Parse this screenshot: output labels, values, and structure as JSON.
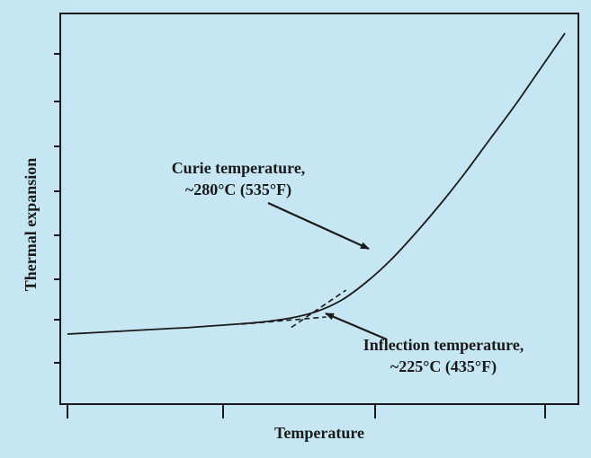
{
  "chart_data": {
    "type": "line",
    "title": "",
    "xlabel": "Temperature",
    "ylabel": "Thermal expansion",
    "x_tick_count": 4,
    "y_tick_count": 8,
    "tick_labels_shown": false,
    "grid": false,
    "series": [
      {
        "style": "solid",
        "x": [
          0,
          25,
          50,
          75,
          100,
          125,
          150,
          175,
          200,
          225,
          250,
          275,
          300,
          325,
          350,
          375,
          400,
          425,
          450,
          475,
          500
        ],
        "y": [
          2.0,
          2.3,
          2.6,
          2.9,
          3.2,
          3.5,
          3.9,
          4.3,
          4.8,
          5.6,
          7.0,
          9.5,
          13.5,
          18.5,
          24.5,
          31.0,
          38.0,
          45.5,
          53.0,
          61.0,
          69.0
        ]
      },
      {
        "style": "dashed",
        "x": [
          175,
          260
        ],
        "y": [
          4.2,
          5.8
        ]
      },
      {
        "style": "dashed",
        "x": [
          225,
          280
        ],
        "y": [
          3.5,
          11.8
        ]
      }
    ],
    "annotations": [
      {
        "lines": [
          "Curie temperature,",
          "~280°C  (535°F)"
        ],
        "points_to": "curie",
        "target": [
          280,
          11.8
        ]
      },
      {
        "lines": [
          "Inflection temperature,",
          "~225°C (435°F)"
        ],
        "points_to": "inflection",
        "target": [
          225,
          5.0
        ]
      }
    ],
    "colors": {
      "background": "#c5e6f2",
      "line": "#1a1a1a",
      "text": "#1a1a1a"
    }
  }
}
